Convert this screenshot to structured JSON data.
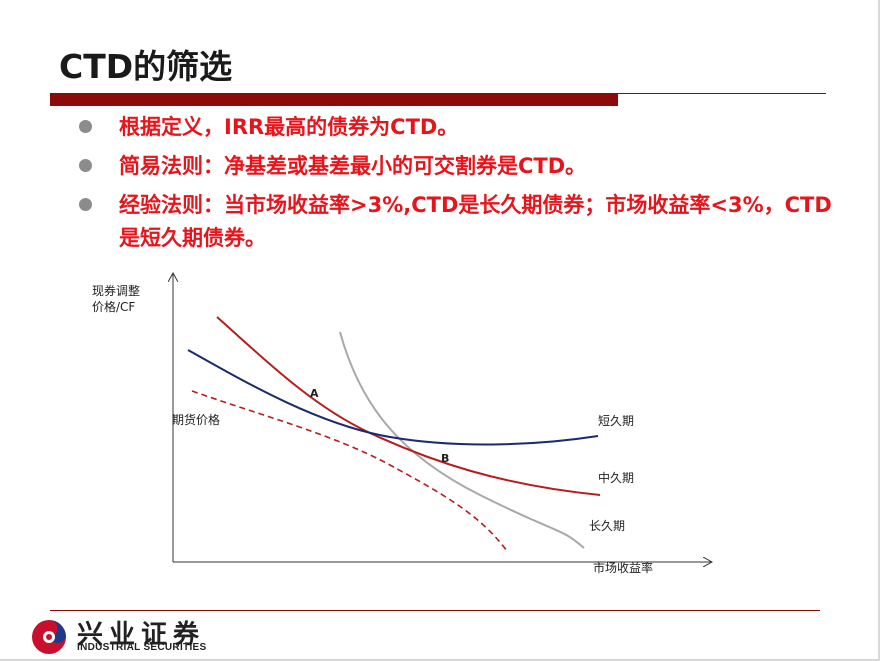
{
  "slide": {
    "title": "CTD的筛选",
    "bullets": [
      "根据定义，IRR最高的债券为CTD。",
      "简易法则：净基差或基差最小的可交割券是CTD。",
      "经验法则：当市场收益率>3%,CTD是长久期债券；市场收益率<3%，CTD是短久期债券。"
    ]
  },
  "diagram": {
    "y_axis_label_line1": "现券调整",
    "y_axis_label_line2": "价格/CF",
    "x_axis_label": "市场收益率",
    "futures_label": "期货价格",
    "point_a": "A",
    "point_b": "B",
    "short_duration_label": "短久期",
    "medium_duration_label": "中久期",
    "long_duration_label": "长久期",
    "colors": {
      "short": "#1a2a6c",
      "medium": "#b71c1c",
      "long": "#a8a8a8",
      "futures": "#b71c1c"
    }
  },
  "footer": {
    "logo_cn": "兴业证券",
    "logo_en": "INDUSTRIAL SECURITIES"
  }
}
